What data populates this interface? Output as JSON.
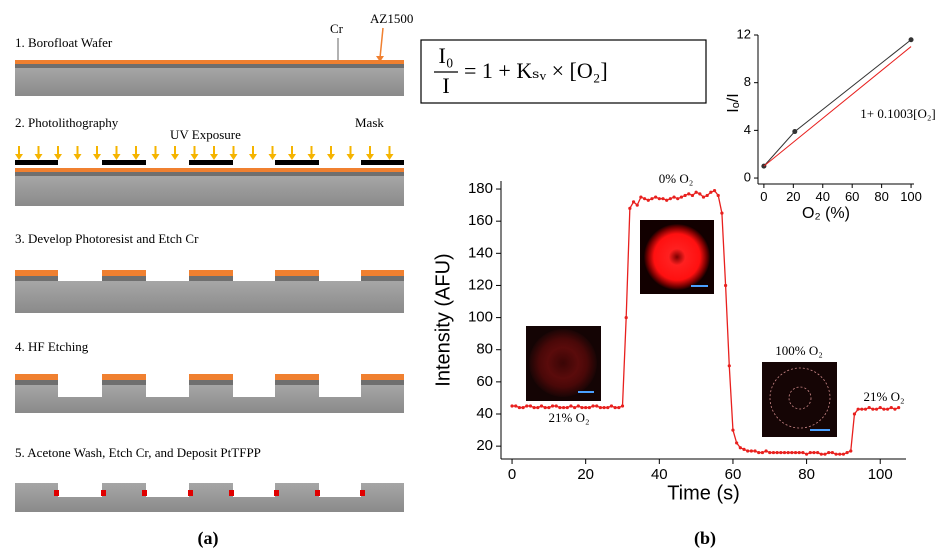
{
  "panel_a": {
    "steps": [
      "1. Borofloat Wafer",
      "2. Photolithography",
      "3. Develop Photoresist and Etch Cr",
      "4. HF Etching",
      "5. Acetone Wash, Etch Cr, and Deposit PtTFPP"
    ],
    "labels": {
      "cr": "Cr",
      "az": "AZ1500",
      "uv": "UV Exposure",
      "mask": "Mask"
    },
    "caption": "(a)"
  },
  "panel_b": {
    "caption": "(b)",
    "equation": {
      "numerator": "I₀",
      "denominator": "I",
      "rhs": "= 1 + Kₛᵥ × [O₂]"
    }
  },
  "chart_data": [
    {
      "type": "line",
      "xlabel": "Time (s)",
      "ylabel": "Intensity (AFU)",
      "x": [
        0,
        1,
        2,
        3,
        4,
        5,
        6,
        7,
        8,
        9,
        10,
        11,
        12,
        13,
        14,
        15,
        16,
        17,
        18,
        19,
        20,
        21,
        22,
        23,
        24,
        25,
        26,
        27,
        28,
        29,
        30,
        31,
        32,
        33,
        34,
        35,
        36,
        37,
        38,
        39,
        40,
        41,
        42,
        43,
        44,
        45,
        46,
        47,
        48,
        49,
        50,
        51,
        52,
        53,
        54,
        55,
        56,
        57,
        58,
        59,
        60,
        61,
        62,
        63,
        64,
        65,
        66,
        67,
        68,
        69,
        70,
        71,
        72,
        73,
        74,
        75,
        76,
        77,
        78,
        79,
        80,
        81,
        82,
        83,
        84,
        85,
        86,
        87,
        88,
        89,
        90,
        91,
        92,
        93,
        94,
        95,
        96,
        97,
        98,
        99,
        100,
        101,
        102,
        103,
        104,
        105
      ],
      "series": [
        {
          "color": "#e8201e",
          "markers": true,
          "values": [
            45,
            45,
            44,
            44,
            45,
            45,
            44,
            44,
            45,
            44,
            44,
            45,
            45,
            44,
            44,
            44,
            45,
            44,
            45,
            44,
            44,
            44,
            45,
            45,
            44,
            44,
            44,
            45,
            44,
            44,
            45,
            100,
            168,
            172,
            170,
            175,
            174,
            173,
            174,
            175,
            174,
            174,
            173,
            174,
            175,
            174,
            175,
            176,
            177,
            176,
            178,
            177,
            175,
            176,
            178,
            179,
            176,
            165,
            120,
            70,
            30,
            22,
            19,
            18,
            17,
            17,
            17,
            16,
            16,
            17,
            16,
            16,
            16,
            16,
            16,
            16,
            16,
            16,
            16,
            16,
            15,
            16,
            16,
            16,
            15,
            15,
            16,
            16,
            15,
            15,
            15,
            16,
            17,
            40,
            43,
            43,
            43,
            44,
            43,
            43,
            44,
            43,
            43,
            44,
            43,
            44
          ]
        }
      ],
      "xlim": [
        -3,
        107
      ],
      "ylim": [
        12,
        185
      ],
      "xticks": [
        0,
        20,
        40,
        60,
        80,
        100
      ],
      "yticks": [
        20,
        40,
        60,
        80,
        100,
        120,
        140,
        160,
        180
      ],
      "annotations": [
        "21% O₂",
        "0% O₂",
        "100% O₂",
        "21% O₂"
      ]
    },
    {
      "type": "line",
      "xlabel": "O₂ (%)",
      "ylabel": "Iₒ/I",
      "series": [
        {
          "color": "#333333",
          "markers": true,
          "x": [
            0,
            21,
            100
          ],
          "values": [
            1,
            3.9,
            11.6
          ]
        },
        {
          "color": "#e8201e",
          "markers": false,
          "x": [
            0,
            100
          ],
          "values": [
            1,
            11.03
          ]
        }
      ],
      "xlim": [
        -4,
        102
      ],
      "ylim": [
        -0.5,
        12
      ],
      "xticks": [
        0,
        20,
        40,
        60,
        80,
        100
      ],
      "yticks": [
        0,
        4,
        8,
        12
      ],
      "annotations": [
        "1+ 0.1003[O₂]"
      ]
    }
  ]
}
